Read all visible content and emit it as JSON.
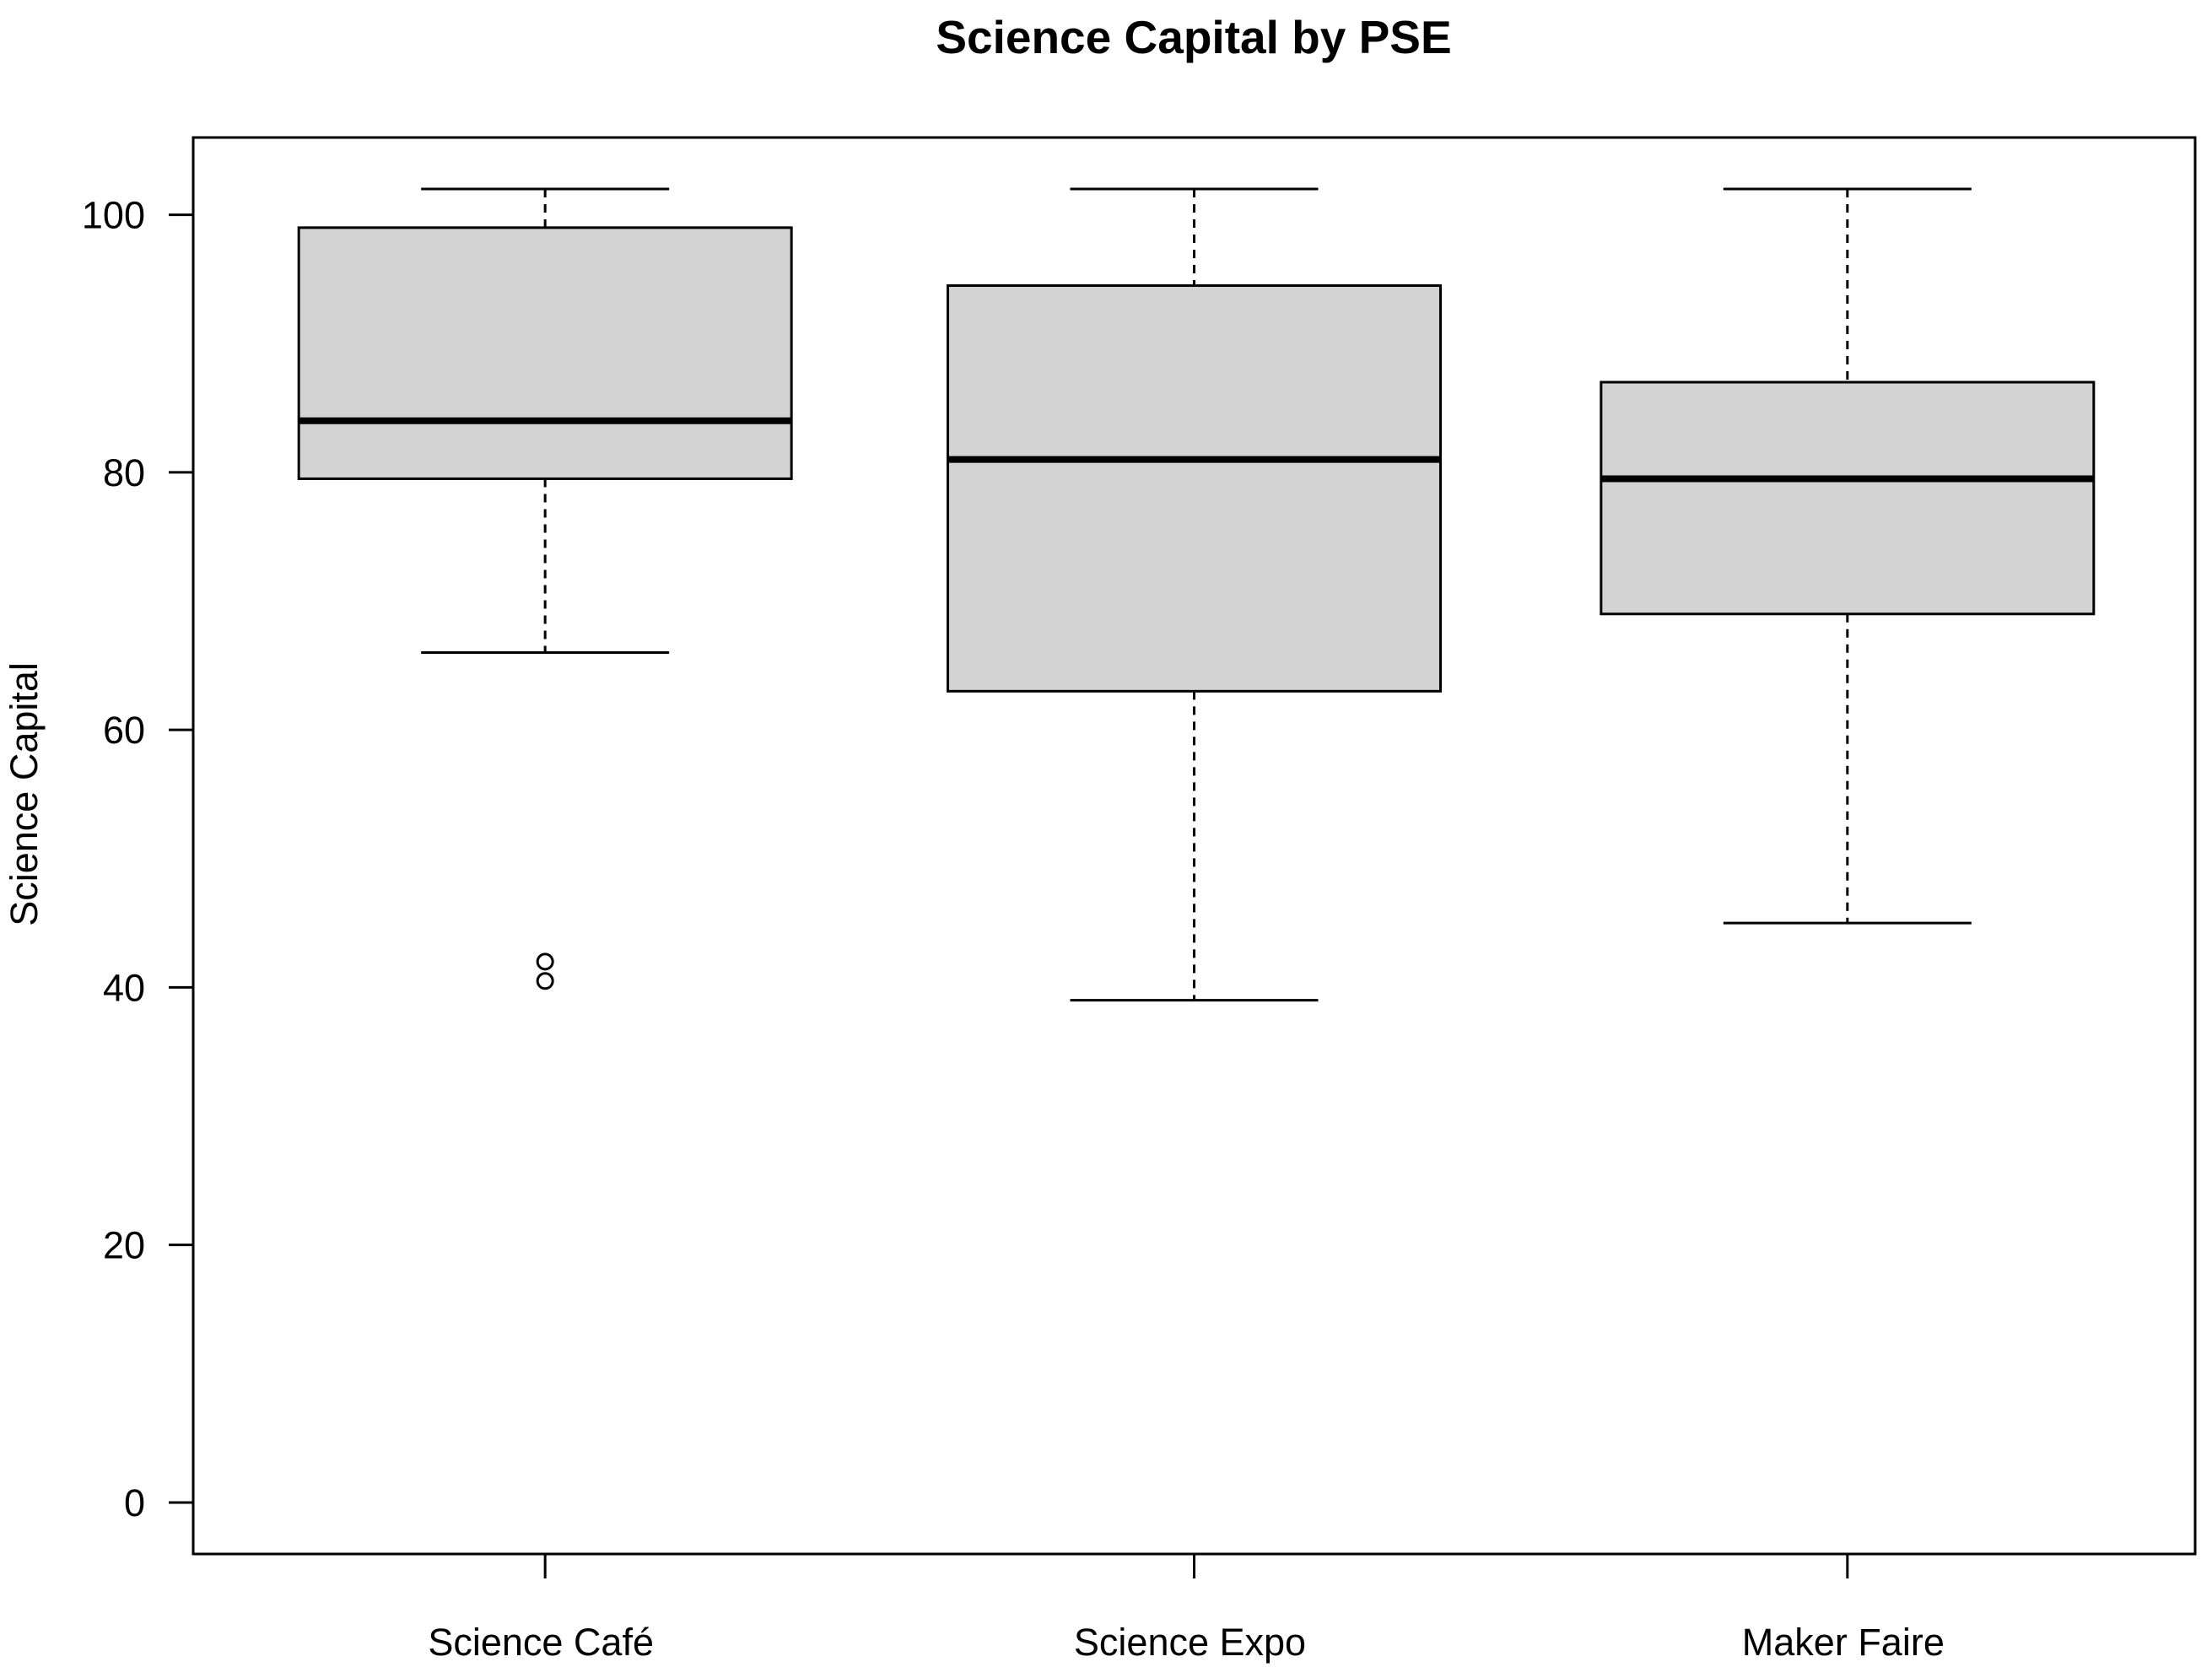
{
  "chart_data": {
    "type": "box",
    "title": "Science Capital by PSE",
    "xlabel": "",
    "ylabel": "Science Capital",
    "ylim": [
      -4,
      106
    ],
    "yticks": [
      0,
      20,
      40,
      60,
      80,
      100
    ],
    "grid": false,
    "box_fill": "#d3d3d3",
    "categories": [
      "Science Café",
      "Science Expo",
      "Maker Faire"
    ],
    "boxes": [
      {
        "category": "Science Café",
        "whisker_low": 66,
        "q1": 79.5,
        "median": 84,
        "q3": 99,
        "whisker_high": 102,
        "outliers": [
          42,
          40.5
        ]
      },
      {
        "category": "Science Expo",
        "whisker_low": 39,
        "q1": 63,
        "median": 81,
        "q3": 94.5,
        "whisker_high": 102,
        "outliers": []
      },
      {
        "category": "Maker Faire",
        "whisker_low": 45,
        "q1": 69,
        "median": 79.5,
        "q3": 87,
        "whisker_high": 102,
        "outliers": []
      }
    ]
  }
}
